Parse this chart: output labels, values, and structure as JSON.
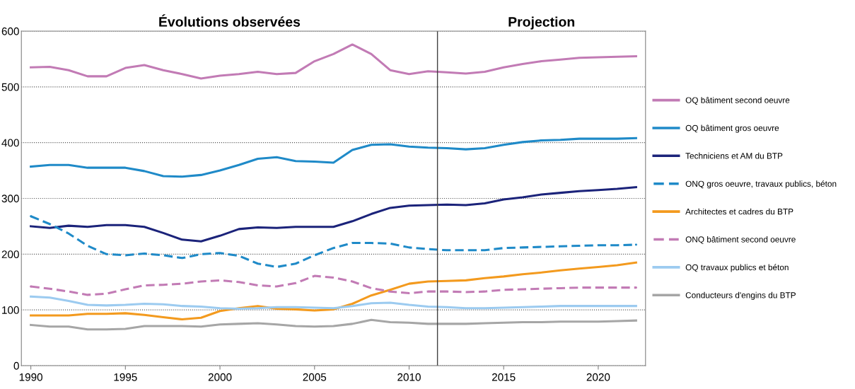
{
  "chart_data": {
    "type": "line",
    "x": [
      1990,
      1991,
      1992,
      1993,
      1994,
      1995,
      1996,
      1997,
      1998,
      1999,
      2000,
      2001,
      2002,
      2003,
      2004,
      2005,
      2006,
      2007,
      2008,
      2009,
      2010,
      2011,
      2012,
      2013,
      2014,
      2015,
      2016,
      2017,
      2018,
      2019,
      2020,
      2021,
      2022
    ],
    "xlim": [
      1989.5,
      2022.5
    ],
    "xticks": [
      1990,
      1995,
      2000,
      2005,
      2010,
      2015,
      2020
    ],
    "ylim": [
      0,
      600
    ],
    "yticks": [
      0,
      100,
      200,
      300,
      400,
      500,
      600
    ],
    "grid": "y",
    "legend": "right",
    "annotations": [
      "Évolutions observées",
      "Projection"
    ],
    "ref_lines": [
      {
        "axis": "x",
        "value": 2011.5,
        "label": null,
        "color": "#404040"
      }
    ],
    "series": [
      {
        "name": "OQ bâtiment second oeuvre",
        "color": "#c27bb5",
        "line_style": "solid",
        "values": [
          535,
          536,
          530,
          519,
          519,
          534,
          539,
          530,
          523,
          515,
          520,
          523,
          527,
          523,
          525,
          546,
          559,
          576,
          559,
          530,
          523,
          528,
          526,
          524,
          527,
          535,
          541,
          546,
          549,
          552,
          553,
          554,
          555
        ]
      },
      {
        "name": "OQ bâtiment gros oeuvre",
        "color": "#1f8ac8",
        "line_style": "solid",
        "values": [
          357,
          360,
          360,
          355,
          355,
          355,
          349,
          340,
          339,
          342,
          350,
          360,
          371,
          374,
          367,
          366,
          364,
          387,
          396,
          397,
          393,
          391,
          390,
          388,
          390,
          396,
          401,
          404,
          405,
          407,
          407,
          407,
          408
        ]
      },
      {
        "name": "Techniciens et AM du BTP",
        "color": "#1b237a",
        "line_style": "solid",
        "values": [
          250,
          247,
          251,
          249,
          252,
          252,
          249,
          238,
          226,
          223,
          233,
          245,
          248,
          247,
          249,
          249,
          249,
          259,
          272,
          283,
          287,
          288,
          289,
          288,
          291,
          298,
          302,
          307,
          310,
          313,
          315,
          317,
          320
        ]
      },
      {
        "name": "ONQ gros oeuvre, travaux publics, béton",
        "color": "#1f8ac8",
        "line_style": "dashed",
        "values": [
          268,
          254,
          237,
          215,
          200,
          198,
          201,
          198,
          193,
          200,
          202,
          197,
          183,
          177,
          183,
          198,
          211,
          220,
          220,
          219,
          212,
          209,
          207,
          207,
          207,
          211,
          212,
          213,
          214,
          215,
          216,
          216,
          217
        ]
      },
      {
        "name": "Architectes et cadres du BTP",
        "color": "#f39a1e",
        "line_style": "solid",
        "values": [
          90,
          90,
          90,
          93,
          93,
          94,
          91,
          87,
          83,
          86,
          98,
          103,
          107,
          102,
          101,
          99,
          101,
          111,
          126,
          136,
          147,
          151,
          152,
          153,
          157,
          160,
          164,
          167,
          171,
          174,
          177,
          180,
          185
        ]
      },
      {
        "name": "ONQ bâtiment second oeuvre",
        "color": "#c27bb5",
        "line_style": "dashed",
        "values": [
          142,
          138,
          133,
          127,
          129,
          137,
          144,
          145,
          147,
          151,
          153,
          150,
          144,
          142,
          148,
          161,
          158,
          151,
          139,
          133,
          130,
          133,
          133,
          132,
          133,
          136,
          137,
          138,
          139,
          140,
          140,
          140,
          140
        ]
      },
      {
        "name": "OQ travaux publics et béton",
        "color": "#9ccbf0",
        "line_style": "solid",
        "values": [
          124,
          122,
          116,
          109,
          108,
          109,
          111,
          110,
          107,
          106,
          103,
          102,
          103,
          105,
          105,
          104,
          103,
          107,
          112,
          113,
          109,
          106,
          105,
          103,
          103,
          104,
          105,
          106,
          107,
          107,
          107,
          107,
          107
        ]
      },
      {
        "name": "Conducteurs d'engins du BTP",
        "color": "#a6a6a6",
        "line_style": "solid",
        "values": [
          73,
          70,
          70,
          65,
          65,
          66,
          71,
          71,
          71,
          70,
          74,
          75,
          76,
          74,
          71,
          70,
          71,
          75,
          82,
          78,
          77,
          75,
          75,
          75,
          76,
          77,
          78,
          78,
          79,
          79,
          79,
          80,
          81
        ]
      }
    ]
  }
}
